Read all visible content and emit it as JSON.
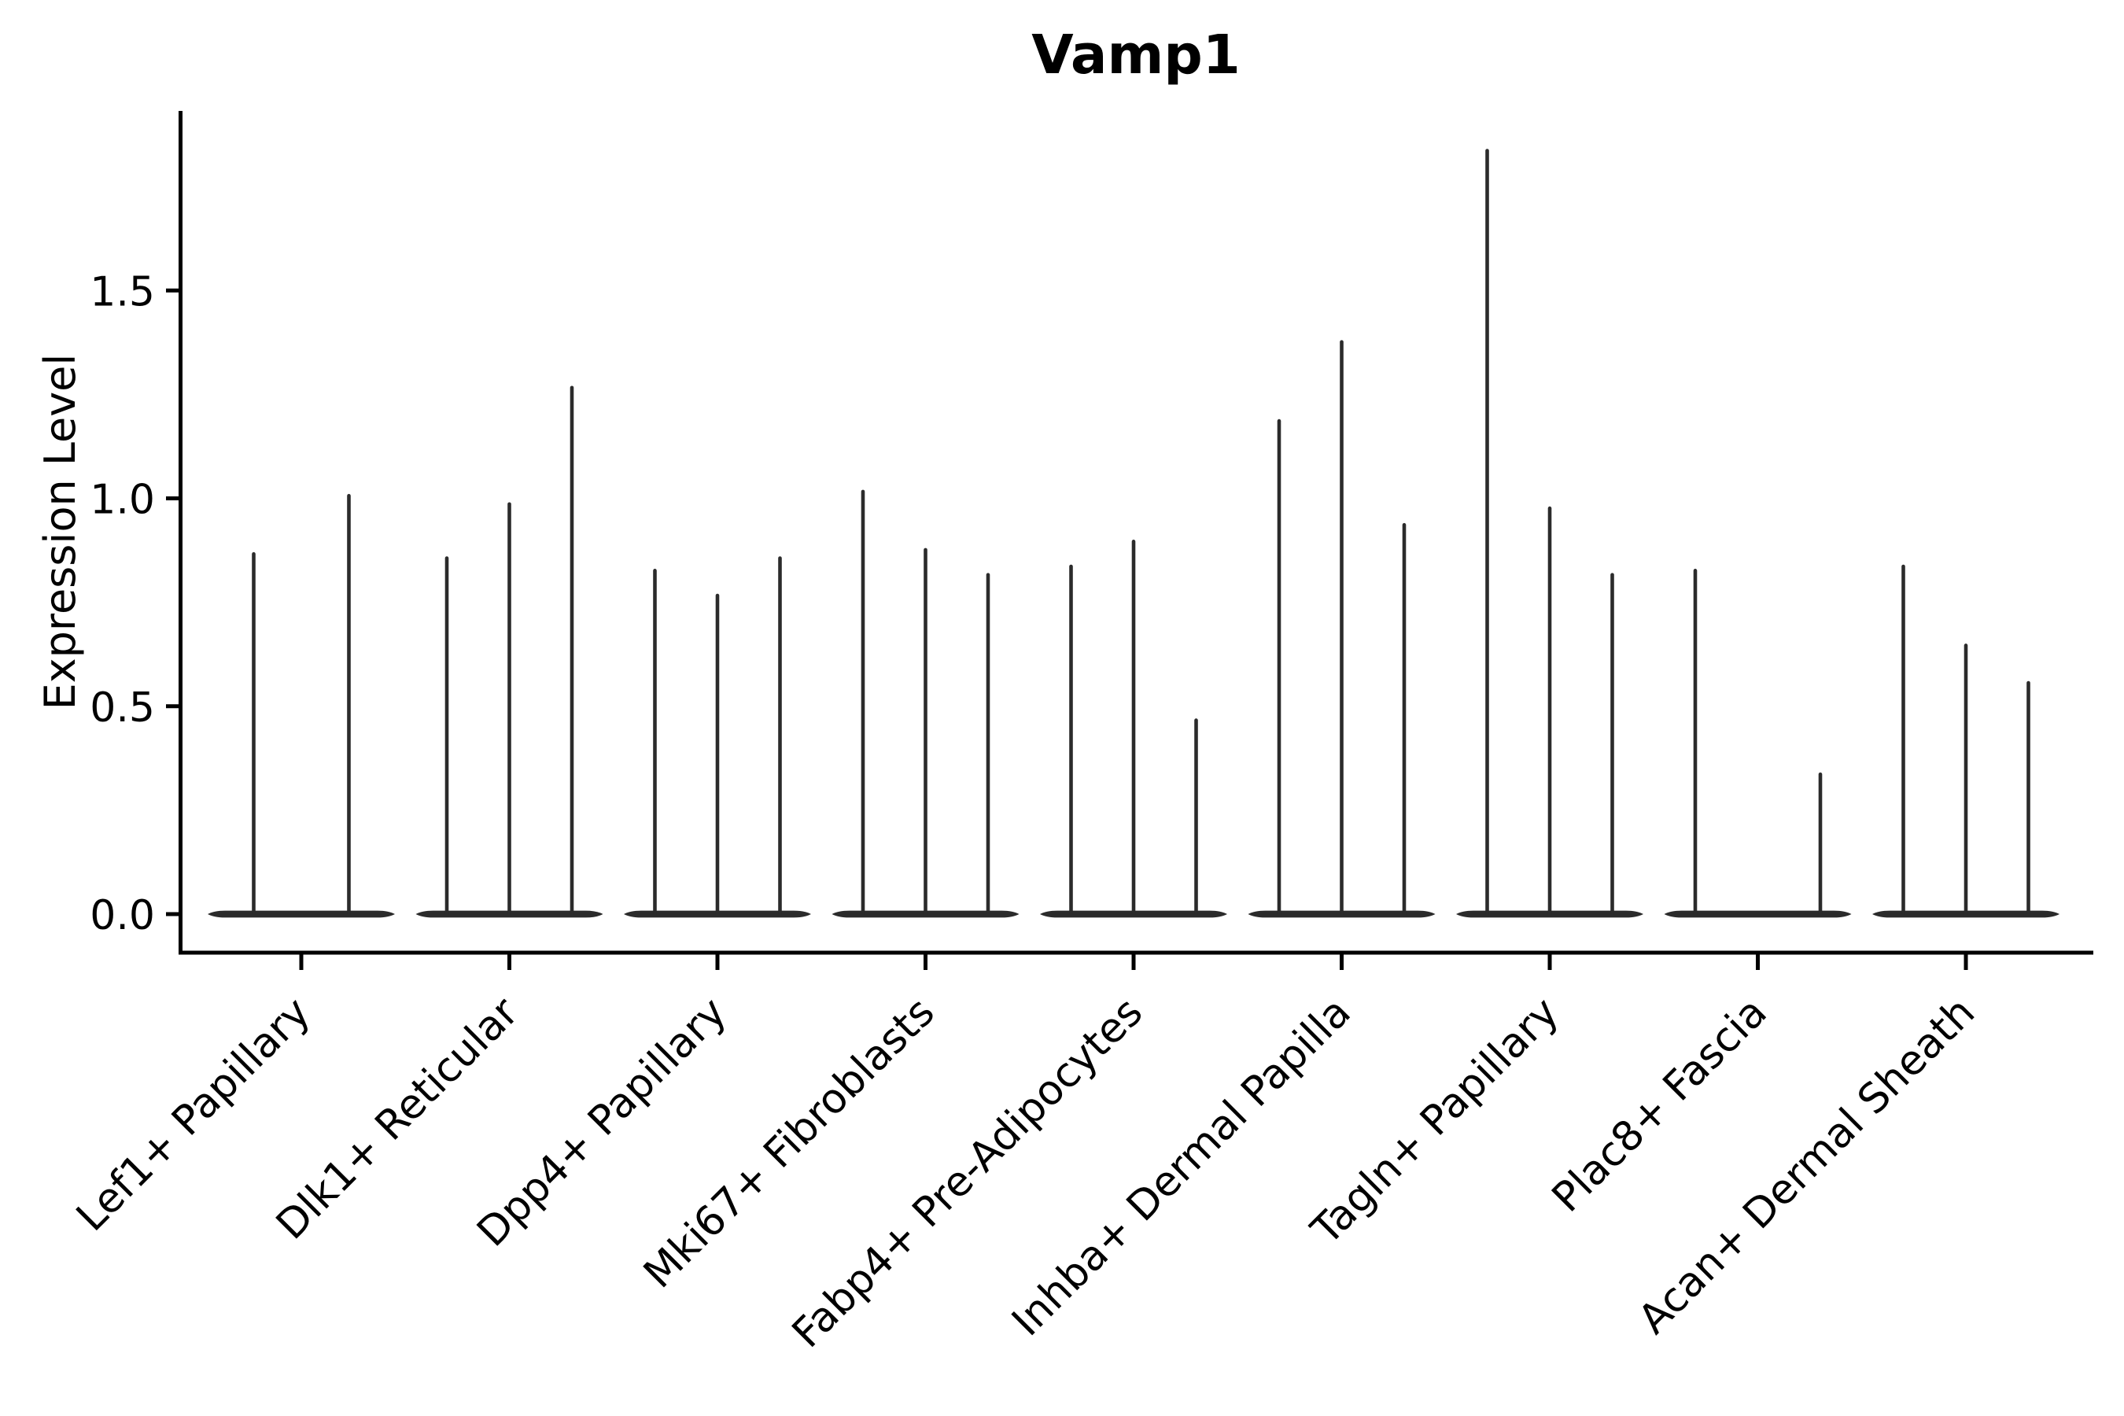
{
  "chart_data": {
    "type": "violin",
    "title": "Vamp1",
    "ylabel": "Expression Level",
    "xlabel": "",
    "grid": false,
    "legend": "none",
    "ytick_labels": [
      "0.0",
      "0.5",
      "1.0",
      "1.5"
    ],
    "ylim": [
      -0.09,
      1.93
    ],
    "categories": [
      "Lef1+ Papillary",
      "Dlk1+ Reticular",
      "Dpp4+ Papillary",
      "Mki67+ Fibroblasts",
      "Fabp4+ Pre-Adipocytes",
      "Inhba+ Dermal Papilla",
      "Tagln+ Papillary",
      "Plac8+ Fascia",
      "Acan+ Dermal Sheath"
    ],
    "violins": [
      {
        "category": "Lef1+ Papillary",
        "spike_maxima": [
          0.87,
          1.01
        ]
      },
      {
        "category": "Dlk1+ Reticular",
        "spike_maxima": [
          0.86,
          0.99,
          1.27
        ]
      },
      {
        "category": "Dpp4+ Papillary",
        "spike_maxima": [
          0.83,
          0.77,
          0.86
        ]
      },
      {
        "category": "Mki67+ Fibroblasts",
        "spike_maxima": [
          1.02,
          0.88,
          0.82
        ]
      },
      {
        "category": "Fabp4+ Pre-Adipocytes",
        "spike_maxima": [
          0.84,
          0.9,
          0.47
        ]
      },
      {
        "category": "Inhba+ Dermal Papilla",
        "spike_maxima": [
          1.19,
          1.38,
          0.94
        ]
      },
      {
        "category": "Tagln+ Papillary",
        "spike_maxima": [
          1.84,
          0.98,
          0.82
        ]
      },
      {
        "category": "Plac8+ Fascia",
        "spike_maxima": [
          0.83,
          0,
          0.34
        ]
      },
      {
        "category": "Acan+ Dermal Sheath",
        "spike_maxima": [
          0.84,
          0.65,
          0.56
        ]
      }
    ],
    "description": "Violin plot of Vamp1 expression; each cluster shows thin spike violins with a flat dense base at 0 expression.",
    "colors": {
      "violin": "#2b2b2b",
      "axis": "#000000",
      "text": "#000000",
      "background": "#ffffff"
    }
  }
}
